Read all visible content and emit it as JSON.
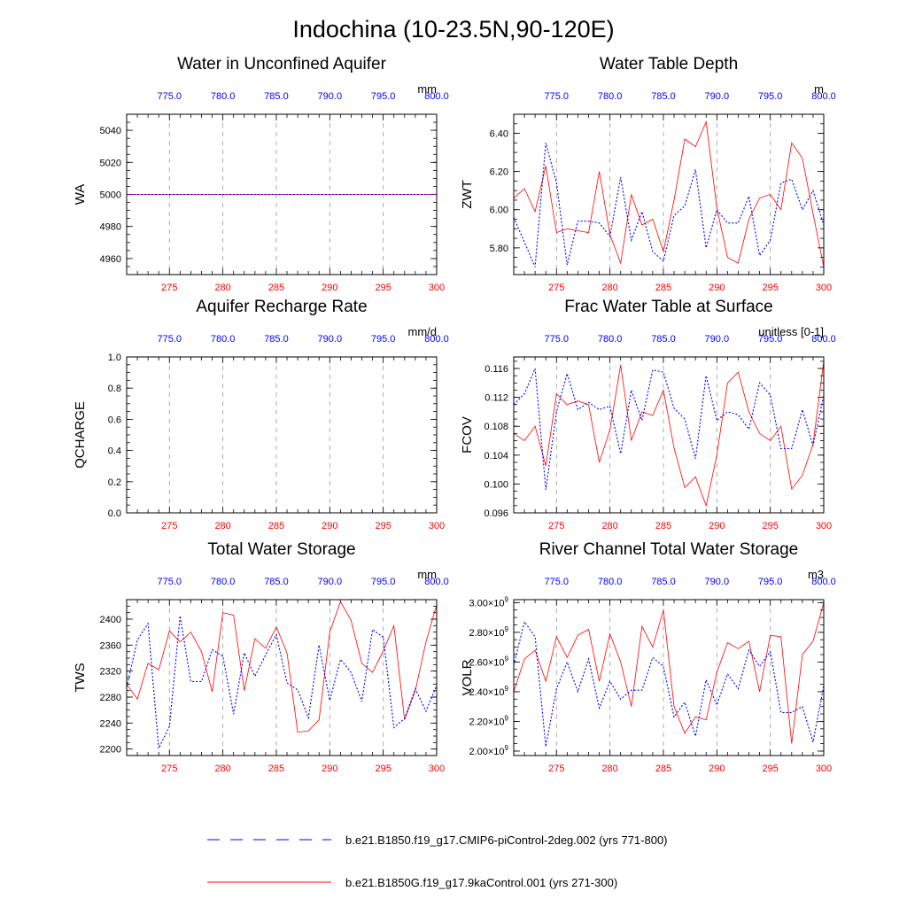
{
  "title": "Indochina (10-23.5N,90-120E)",
  "colors": {
    "series_a": "#0000ff",
    "series_b": "#ff0000",
    "grid": "#999999",
    "axis": "#000000"
  },
  "x_bottom": {
    "range": [
      271,
      300
    ],
    "ticks": [
      275,
      280,
      285,
      290,
      295,
      300
    ],
    "labels": [
      "275",
      "280",
      "285",
      "290",
      "295",
      "300"
    ]
  },
  "x_top": {
    "ticks": [
      775,
      780,
      785,
      790,
      795,
      800
    ],
    "labels": [
      "775.0",
      "780.0",
      "785.0",
      "790.0",
      "795.0",
      "800.0"
    ]
  },
  "legend": [
    {
      "label": "b.e21.B1850.f19_g17.CMIP6-piControl-2deg.002 (yrs 771-800)",
      "color": "#0000ff",
      "style": "dashed"
    },
    {
      "label": "b.e21.B1850G.f19_g17.9kaControl.001 (yrs 271-300)",
      "color": "#ff0000",
      "style": "solid"
    }
  ],
  "chart_data": [
    {
      "type": "line",
      "title": "Water in Unconfined Aquifer",
      "ylabel": "WA",
      "units": "mm",
      "ylim": [
        4950,
        5050
      ],
      "yticks": [
        4960,
        4980,
        5000,
        5020,
        5040
      ],
      "ytick_labels": [
        "4960",
        "4980",
        "5000",
        "5020",
        "5040"
      ],
      "series": [
        {
          "values": [
            5000,
            5000,
            5000,
            5000,
            5000,
            5000,
            5000,
            5000,
            5000,
            5000,
            5000,
            5000,
            5000,
            5000,
            5000,
            5000,
            5000,
            5000,
            5000,
            5000,
            5000,
            5000,
            5000,
            5000,
            5000,
            5000,
            5000,
            5000,
            5000,
            5000
          ],
          "color": "#ff0000",
          "style": "solid"
        },
        {
          "values": [
            5000,
            5000,
            5000,
            5000,
            5000,
            5000,
            5000,
            5000,
            5000,
            5000,
            5000,
            5000,
            5000,
            5000,
            5000,
            5000,
            5000,
            5000,
            5000,
            5000,
            5000,
            5000,
            5000,
            5000,
            5000,
            5000,
            5000,
            5000,
            5000,
            5000
          ],
          "color": "#0000ff",
          "style": "dashed"
        }
      ]
    },
    {
      "type": "line",
      "title": "Water Table Depth",
      "ylabel": "ZWT",
      "units": "m",
      "ylim": [
        5.66,
        6.5
      ],
      "yticks": [
        5.8,
        6.0,
        6.2,
        6.4
      ],
      "ytick_labels": [
        "5.80",
        "6.00",
        "6.20",
        "6.40"
      ],
      "series": [
        {
          "values": [
            6.06,
            6.11,
            5.99,
            6.23,
            5.88,
            5.9,
            5.89,
            5.88,
            6.2,
            5.87,
            5.72,
            6.08,
            5.92,
            5.95,
            5.78,
            6.05,
            6.37,
            6.33,
            6.46,
            6.01,
            5.75,
            5.72,
            5.95,
            6.06,
            6.08,
            6.0,
            6.35,
            6.27,
            5.98,
            5.7
          ],
          "color": "#ff0000",
          "style": "solid"
        },
        {
          "values": [
            5.96,
            5.83,
            5.7,
            6.35,
            6.14,
            5.71,
            5.94,
            5.94,
            5.93,
            5.86,
            6.17,
            5.84,
            5.99,
            5.78,
            5.73,
            5.97,
            6.02,
            6.21,
            5.8,
            6.0,
            5.93,
            5.93,
            6.07,
            5.76,
            5.84,
            6.14,
            6.16,
            6.0,
            6.1,
            5.92
          ],
          "color": "#0000ff",
          "style": "dashed"
        }
      ]
    },
    {
      "type": "line",
      "title": "Aquifer Recharge Rate",
      "ylabel": "QCHARGE",
      "units": "mm/d",
      "ylim": [
        0,
        1
      ],
      "yticks": [
        0,
        0.2,
        0.4,
        0.6,
        0.8,
        1.0
      ],
      "ytick_labels": [
        "0.0",
        "0.2",
        "0.4",
        "0.6",
        "0.8",
        "1.0"
      ],
      "series": []
    },
    {
      "type": "line",
      "title": "Frac Water Table at Surface",
      "ylabel": "FCOV",
      "units": "unitless [0-1]",
      "ylim": [
        0.096,
        0.1176
      ],
      "yticks": [
        0.096,
        0.1,
        0.104,
        0.108,
        0.112,
        0.116
      ],
      "ytick_labels": [
        "0.096",
        "0.100",
        "0.104",
        "0.108",
        "0.112",
        "0.116"
      ],
      "series": [
        {
          "values": [
            0.107,
            0.106,
            0.108,
            0.1025,
            0.1125,
            0.111,
            0.1115,
            0.111,
            0.103,
            0.1075,
            0.1165,
            0.106,
            0.11,
            0.1095,
            0.113,
            0.105,
            0.0995,
            0.101,
            0.097,
            0.104,
            0.114,
            0.1155,
            0.11,
            0.107,
            0.106,
            0.108,
            0.0993,
            0.1012,
            0.1055,
            0.117
          ],
          "color": "#ff0000",
          "style": "solid"
        },
        {
          "values": [
            0.111,
            0.1125,
            0.116,
            0.0992,
            0.11,
            0.1153,
            0.1103,
            0.1113,
            0.1103,
            0.1108,
            0.1042,
            0.113,
            0.1088,
            0.1158,
            0.1155,
            0.1105,
            0.109,
            0.1035,
            0.115,
            0.1088,
            0.11,
            0.1096,
            0.1076,
            0.114,
            0.1123,
            0.1049,
            0.1049,
            0.1103,
            0.1053,
            0.1123
          ],
          "color": "#0000ff",
          "style": "dashed"
        }
      ]
    },
    {
      "type": "line",
      "title": "Total Water Storage",
      "ylabel": "TWS",
      "units": "mm",
      "ylim": [
        2190,
        2430
      ],
      "yticks": [
        2200,
        2240,
        2280,
        2320,
        2360,
        2400
      ],
      "ytick_labels": [
        "2200",
        "2240",
        "2280",
        "2320",
        "2360",
        "2400"
      ],
      "series": [
        {
          "values": [
            2300,
            2277,
            2332,
            2322,
            2382,
            2365,
            2380,
            2350,
            2288,
            2410,
            2406,
            2290,
            2370,
            2355,
            2388,
            2348,
            2226,
            2228,
            2245,
            2380,
            2427,
            2398,
            2332,
            2318,
            2351,
            2390,
            2245,
            2290,
            2365,
            2422
          ],
          "color": "#ff0000",
          "style": "solid"
        },
        {
          "values": [
            2295,
            2368,
            2393,
            2201,
            2235,
            2405,
            2304,
            2304,
            2353,
            2343,
            2254,
            2348,
            2312,
            2345,
            2376,
            2302,
            2291,
            2248,
            2360,
            2275,
            2338,
            2318,
            2273,
            2384,
            2372,
            2233,
            2247,
            2293,
            2258,
            2298
          ],
          "color": "#0000ff",
          "style": "dashed"
        }
      ]
    },
    {
      "type": "line",
      "title": "River Channel Total Water Storage",
      "ylabel": "VOLR",
      "units": "m3",
      "ylim": [
        1970000000.0,
        3020000000.0
      ],
      "yticks": [
        2000000000.0,
        2200000000.0,
        2400000000.0,
        2600000000.0,
        2800000000.0,
        3000000000.0
      ],
      "ytick_labels": [
        "2.00",
        "2.20",
        "2.40",
        "2.60",
        "2.80",
        "3.00"
      ],
      "ytick_suffix": "×10",
      "ytick_exp": "9",
      "series": [
        {
          "values": [
            2400000000.0,
            2620000000.0,
            2680000000.0,
            2470000000.0,
            2770000000.0,
            2630000000.0,
            2780000000.0,
            2820000000.0,
            2470000000.0,
            2790000000.0,
            2600000000.0,
            2300000000.0,
            2840000000.0,
            2700000000.0,
            2950000000.0,
            2300000000.0,
            2120000000.0,
            2230000000.0,
            2210000000.0,
            2530000000.0,
            2730000000.0,
            2690000000.0,
            2740000000.0,
            2400000000.0,
            2780000000.0,
            2770000000.0,
            2050000000.0,
            2650000000.0,
            2740000000.0,
            3000000000.0
          ],
          "color": "#ff0000",
          "style": "solid"
        },
        {
          "values": [
            2580000000.0,
            2870000000.0,
            2770000000.0,
            2030000000.0,
            2420000000.0,
            2600000000.0,
            2400000000.0,
            2620000000.0,
            2290000000.0,
            2470000000.0,
            2350000000.0,
            2410000000.0,
            2410000000.0,
            2630000000.0,
            2570000000.0,
            2230000000.0,
            2330000000.0,
            2100000000.0,
            2480000000.0,
            2310000000.0,
            2520000000.0,
            2420000000.0,
            2680000000.0,
            2570000000.0,
            2670000000.0,
            2260000000.0,
            2260000000.0,
            2300000000.0,
            2060000000.0,
            2440000000.0
          ],
          "color": "#0000ff",
          "style": "dashed"
        }
      ]
    }
  ]
}
